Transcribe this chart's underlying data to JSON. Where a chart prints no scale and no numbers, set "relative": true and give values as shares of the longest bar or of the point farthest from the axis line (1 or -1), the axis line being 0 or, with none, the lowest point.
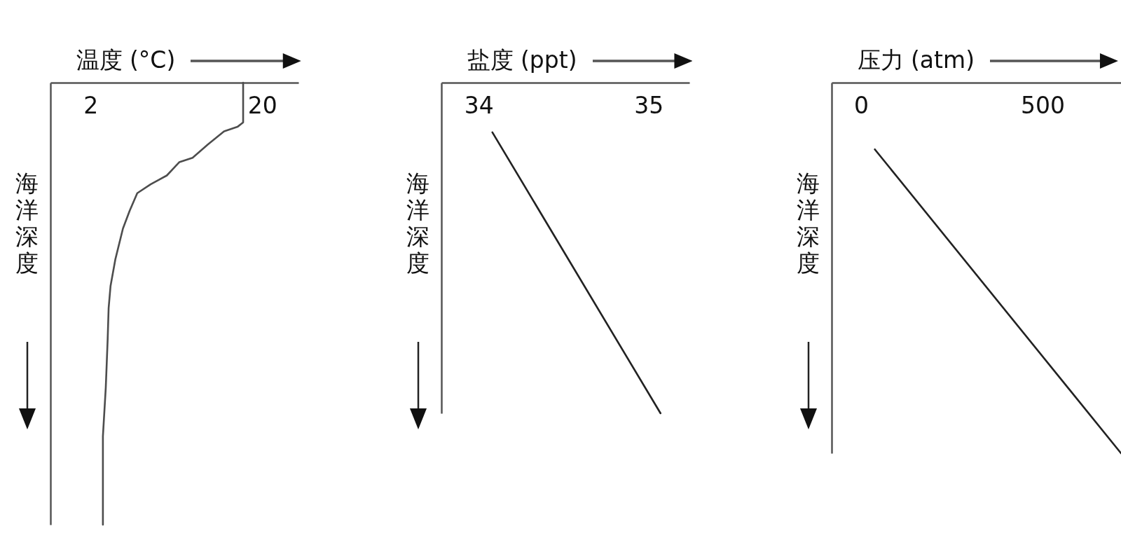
{
  "chart_data": [
    {
      "type": "line",
      "xlabel": "温度 (°C)",
      "ylabel": "海洋深度",
      "relative": true,
      "xlim": [
        -2.2,
        23.8
      ],
      "xticks": [
        2,
        20
      ],
      "x": [
        18.0,
        18.0,
        17.4,
        16.0,
        14.3,
        12.7,
        11.3,
        10.0,
        8.3,
        6.9,
        6.1,
        5.4,
        4.6,
        4.1,
        3.9,
        3.8,
        3.6,
        3.3,
        3.3
      ],
      "series": [
        {
          "color": "#4d4d4d",
          "values": [
            0,
            -0.09,
            -0.1,
            -0.11,
            -0.14,
            -0.17,
            -0.18,
            -0.21,
            -0.23,
            -0.25,
            -0.29,
            -0.33,
            -0.4,
            -0.46,
            -0.51,
            -0.58,
            -0.69,
            -0.8,
            -1
          ]
        }
      ]
    },
    {
      "type": "line",
      "xlabel": "盐度 (ppt)",
      "ylabel": "海洋深度",
      "relative": true,
      "xlim": [
        33.78,
        35.24
      ],
      "xticks": [
        34,
        35
      ],
      "x": [
        34.08,
        35.07
      ],
      "series": [
        {
          "color": "#222222",
          "values": [
            -0.15,
            -1
          ]
        }
      ]
    },
    {
      "type": "line",
      "xlabel": "压力 (atm)",
      "ylabel": "海洋深度",
      "relative": true,
      "xlim": [
        -81,
        716
      ],
      "xticks": [
        0,
        500
      ],
      "x": [
        38,
        716
      ],
      "series": [
        {
          "color": "#222222",
          "values": [
            -0.18,
            -1
          ]
        }
      ]
    }
  ]
}
